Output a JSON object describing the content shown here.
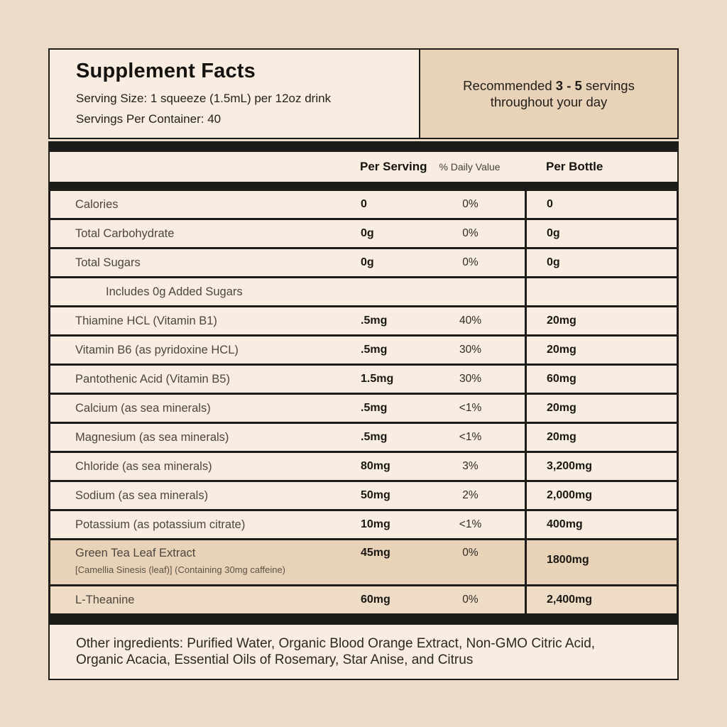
{
  "colors": {
    "page_background": "#ecdcc7",
    "panel_cream": "#f8ede0",
    "panel_tan": "#e8d2b8",
    "highlight_light_tan": "#eedcc6",
    "bar_black": "#1e1c19"
  },
  "header": {
    "title": "Supplement Facts",
    "serving_size": "Serving Size: 1 squeeze (1.5mL) per 12oz drink",
    "servings_per_container": "Servings Per Container: 40",
    "recommendation": {
      "prefix": "Recommended ",
      "range": "3 - 5",
      "suffix": " servings",
      "line2": "throughout your day"
    }
  },
  "columns": {
    "per_serving": "Per Serving",
    "daily_value": "% Daily Value",
    "per_bottle": "Per Bottle"
  },
  "table": {
    "rows": [
      {
        "label": "Calories",
        "per_serving": "0",
        "daily_value": "0%",
        "per_bottle": "0"
      },
      {
        "label": "Total Carbohydrate",
        "per_serving": "0g",
        "daily_value": "0%",
        "per_bottle": "0g"
      },
      {
        "label": "Total Sugars",
        "per_serving": "0g",
        "daily_value": "0%",
        "per_bottle": "0g"
      },
      {
        "label": "Includes 0g Added Sugars",
        "indent": true,
        "per_serving": "",
        "daily_value": "",
        "per_bottle": ""
      },
      {
        "label": "Thiamine HCL (Vitamin B1)",
        "per_serving": ".5mg",
        "daily_value": "40%",
        "per_bottle": "20mg"
      },
      {
        "label": "Vitamin B6 (as pyridoxine HCL)",
        "per_serving": ".5mg",
        "daily_value": "30%",
        "per_bottle": "20mg"
      },
      {
        "label": "Pantothenic Acid (Vitamin B5)",
        "per_serving": "1.5mg",
        "daily_value": "30%",
        "per_bottle": "60mg"
      },
      {
        "label": "Calcium (as sea minerals)",
        "per_serving": ".5mg",
        "daily_value": "<1%",
        "per_bottle": "20mg"
      },
      {
        "label": "Magnesium (as sea minerals)",
        "per_serving": ".5mg",
        "daily_value": "<1%",
        "per_bottle": "20mg"
      },
      {
        "label": "Chloride (as sea minerals)",
        "per_serving": "80mg",
        "daily_value": "3%",
        "per_bottle": "3,200mg"
      },
      {
        "label": "Sodium (as sea minerals)",
        "per_serving": "50mg",
        "daily_value": "2%",
        "per_bottle": "2,000mg"
      },
      {
        "label": "Potassium (as potassium citrate)",
        "per_serving": "10mg",
        "daily_value": "<1%",
        "per_bottle": "400mg"
      },
      {
        "label": "Green Tea Leaf Extract",
        "sublabel": "[Camellia Sinesis (leaf)]  (Containing 30mg caffeine)",
        "per_serving": "45mg",
        "daily_value": "0%",
        "per_bottle": "1800mg",
        "highlight": true
      },
      {
        "label": "L-Theanine",
        "per_serving": "60mg",
        "daily_value": "0%",
        "per_bottle": "2,400mg",
        "highlight": true
      }
    ]
  },
  "footer": {
    "other_ingredients": "Other ingredients: Purified Water, Organic Blood Orange Extract, Non-GMO Citric Acid, Organic Acacia, Essential Oils of Rosemary, Star Anise, and Citrus"
  }
}
